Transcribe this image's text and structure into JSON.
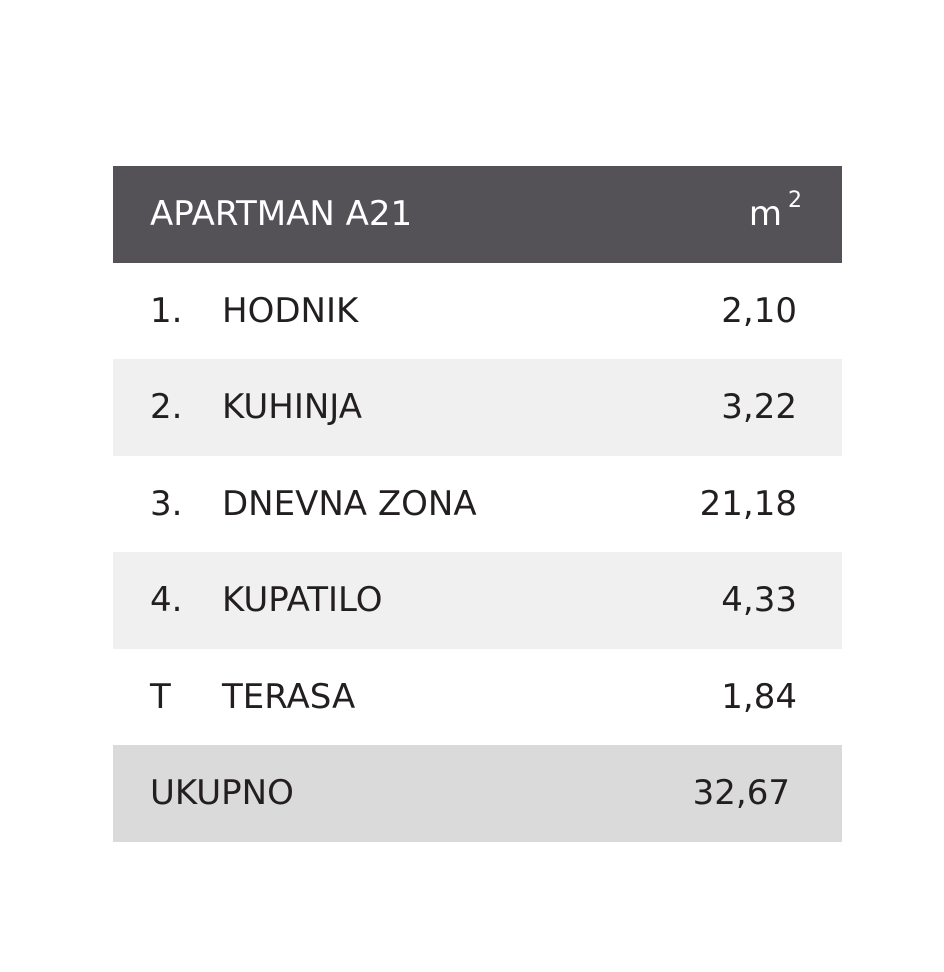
{
  "header": {
    "title": "APARTMAN A21",
    "unit": {
      "base": "m",
      "exponent": "2"
    }
  },
  "table": {
    "rows": [
      [
        "1.",
        "HODNIK",
        "2,10"
      ],
      [
        "2.",
        "KUHINJA",
        "3,22"
      ],
      [
        "3.",
        "DNEVNA ZONA",
        "21,18"
      ],
      [
        "4.",
        "KUPATILO",
        "4,33"
      ],
      [
        "T",
        "TERASA",
        "1,84"
      ]
    ]
  },
  "total": {
    "label": "UKUPNO",
    "value": "32,67"
  }
}
